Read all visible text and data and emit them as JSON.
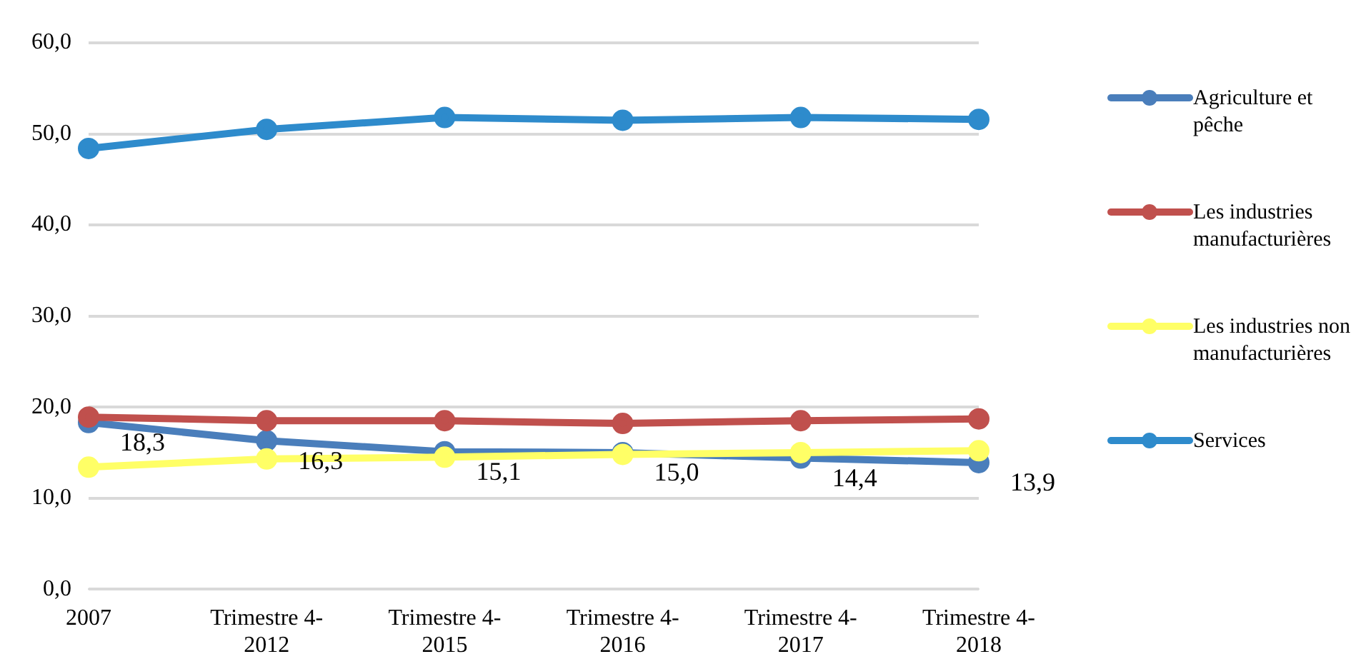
{
  "chart_data": {
    "type": "line",
    "categories": [
      "2007",
      "Trimestre 4- 2012",
      "Trimestre 4- 2015",
      "Trimestre 4- 2016",
      "Trimestre 4- 2017",
      "Trimestre 4- 2018"
    ],
    "series": [
      {
        "name": "Agriculture et pêche",
        "color": "#4a7ebb",
        "values": [
          18.3,
          16.3,
          15.1,
          15.0,
          14.4,
          13.9
        ],
        "value_labels": [
          "18,3",
          "16,3",
          "15,1",
          "15,0",
          "14,4",
          "13,9"
        ]
      },
      {
        "name": "Les industries manufacturières",
        "color": "#c0504d",
        "values": [
          18.9,
          18.5,
          18.5,
          18.2,
          18.5,
          18.7
        ]
      },
      {
        "name": "Les industries non manufacturières",
        "color": "#ffff66",
        "values": [
          13.4,
          14.3,
          14.5,
          14.8,
          15.0,
          15.2
        ]
      },
      {
        "name": "Services",
        "color": "#2e8bcc",
        "values": [
          48.4,
          50.5,
          51.8,
          51.5,
          51.8,
          51.6
        ]
      }
    ],
    "ylim": [
      0,
      60
    ],
    "yticks": [
      {
        "value": 0,
        "label": "0,0"
      },
      {
        "value": 10,
        "label": "10,0"
      },
      {
        "value": 20,
        "label": "20,0"
      },
      {
        "value": 30,
        "label": "30,0"
      },
      {
        "value": 40,
        "label": "40,0"
      },
      {
        "value": 50,
        "label": "50,0"
      },
      {
        "value": 60,
        "label": "60,0"
      }
    ],
    "grid": "y",
    "legend": "right",
    "marker": "circle",
    "line_style": "solid"
  }
}
